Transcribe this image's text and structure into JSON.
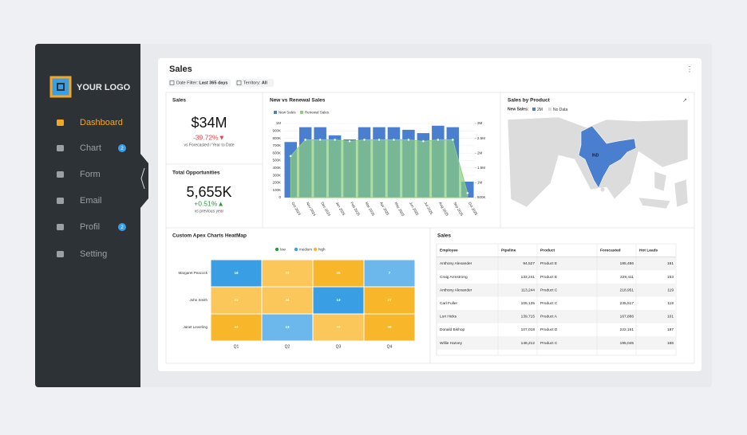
{
  "sidebar": {
    "logo": "YOUR LOGO",
    "menu": [
      {
        "label": "Dashboard"
      },
      {
        "label": "Chart",
        "badge": 2
      },
      {
        "label": "Form"
      },
      {
        "label": "Email"
      },
      {
        "label": "Profil",
        "badge": 2
      },
      {
        "label": "Setting"
      }
    ]
  },
  "header": {
    "title": "Sales",
    "filters": [
      {
        "label": "Date Filter:",
        "value": "Last 365 days"
      },
      {
        "label": "Territory:",
        "value": "All"
      }
    ]
  },
  "kpis": [
    {
      "title": "Sales",
      "value": "$34M",
      "change": "-39.72%▼",
      "note": "vs Forecasted / Year to Date"
    },
    {
      "title": "Total Opportunities",
      "value": "5,655K",
      "change": "+0.51%▲",
      "note": "vs previous year"
    }
  ],
  "chart_data": [
    {
      "type": "bar",
      "title": "New vs Renewal Sales",
      "categories": [
        "Oct 2024",
        "Nov 2024",
        "Dec 2024",
        "Jan 2025",
        "Feb 2025",
        "Mar 2025",
        "Apr 2025",
        "May 2025",
        "Jun 2025",
        "Jul 2025",
        "Aug 2025",
        "Sep 2025",
        "Oct 2025"
      ],
      "series": [
        {
          "name": "New Sales",
          "color": "#4a7fd0",
          "values": [
            750000,
            950000,
            950000,
            840000,
            785000,
            950000,
            950000,
            950000,
            915000,
            870000,
            970000,
            950000,
            215000
          ]
        },
        {
          "name": "Renewal Sales",
          "color": "#8ccf7e",
          "type": "area",
          "axis": "y2",
          "values": [
            1900000,
            2450000,
            2450000,
            2450000,
            2400000,
            2450000,
            2450000,
            2450000,
            2450000,
            2400000,
            2450000,
            2450000,
            650000
          ]
        }
      ],
      "ylim": [
        0,
        1000000
      ],
      "yticks": [
        0,
        {
          "value": 100000,
          "label": "100K"
        },
        {
          "value": 200000,
          "label": "200K"
        },
        {
          "value": 300000,
          "label": "300K"
        },
        {
          "value": 400000,
          "label": "400K"
        },
        {
          "value": 500000,
          "label": "500K"
        },
        {
          "value": 600000,
          "label": "600K"
        },
        {
          "value": 700000,
          "label": "700K"
        },
        {
          "value": 800000,
          "label": "800K"
        },
        {
          "value": 900000,
          "label": "900K"
        },
        {
          "value": 1000000,
          "label": "1M"
        }
      ],
      "y2lim": [
        500000,
        3000000
      ],
      "y2ticks": [
        {
          "value": 500000,
          "label": "500K"
        },
        {
          "value": 1000000,
          "label": "1M"
        },
        {
          "value": 1500000,
          "label": "1.5M"
        },
        {
          "value": 2000000,
          "label": "2M"
        },
        {
          "value": 2500000,
          "label": "2.5M"
        },
        {
          "value": 3000000,
          "label": "3M"
        }
      ],
      "grid": true
    },
    {
      "type": "heatmap",
      "title": "Custom Apex Charts HeatMap",
      "categories": [
        "Q1",
        "Q2",
        "Q3",
        "Q4"
      ],
      "legend": [
        {
          "name": "low",
          "color": "#2a9d3a"
        },
        {
          "name": "medium",
          "color": "#3a9ee4"
        },
        {
          "name": "high",
          "color": "#f8b62a"
        }
      ],
      "series": [
        {
          "name": "Margaret Peacock",
          "values": [
            18,
            33,
            45,
            7
          ],
          "colors": [
            "#3a9ee4",
            "#fbc65a",
            "#f8b62a",
            "#6cb8ec"
          ]
        },
        {
          "name": "John Smith",
          "values": [
            22,
            34,
            13,
            27
          ],
          "colors": [
            "#fbc65a",
            "#fbc65a",
            "#3a9ee4",
            "#f8b62a"
          ]
        },
        {
          "name": "Janet Leverling",
          "values": [
            42,
            13,
            33,
            38
          ],
          "colors": [
            "#f8b62a",
            "#6cb8ec",
            "#fbc65a",
            "#f8b62a"
          ]
        }
      ]
    }
  ],
  "map": {
    "title": "Sales by Product",
    "legend_label": "New Sales:",
    "legend_items": [
      {
        "label": "2M",
        "color": "#4a7fd0"
      },
      {
        "label": "No Data",
        "color": "#dcdcdc"
      }
    ],
    "region_label": "IND"
  },
  "table": {
    "title": "Sales",
    "columns": [
      "Employee",
      "Pipeline",
      "Product",
      "Forecasted",
      "Hot Leads"
    ],
    "rows": [
      [
        "Anthony Alexander",
        "94,527",
        "Product E",
        "185,486",
        "161"
      ],
      [
        "Craig Armstrong",
        "133,241",
        "Product E",
        "229,411",
        "153"
      ],
      [
        "Anthony Alexander",
        "113,244",
        "Product C",
        "218,951",
        "119"
      ],
      [
        "Carl Fuller",
        "105,135",
        "Product C",
        "235,517",
        "119"
      ],
      [
        "Lori Hicks",
        "139,715",
        "Product A",
        "167,886",
        "101"
      ],
      [
        "Donald Bishop",
        "107,018",
        "Product D",
        "222,161",
        "187"
      ],
      [
        "Willie Harvey",
        "148,212",
        "Product C",
        "195,045",
        "166"
      ]
    ]
  }
}
